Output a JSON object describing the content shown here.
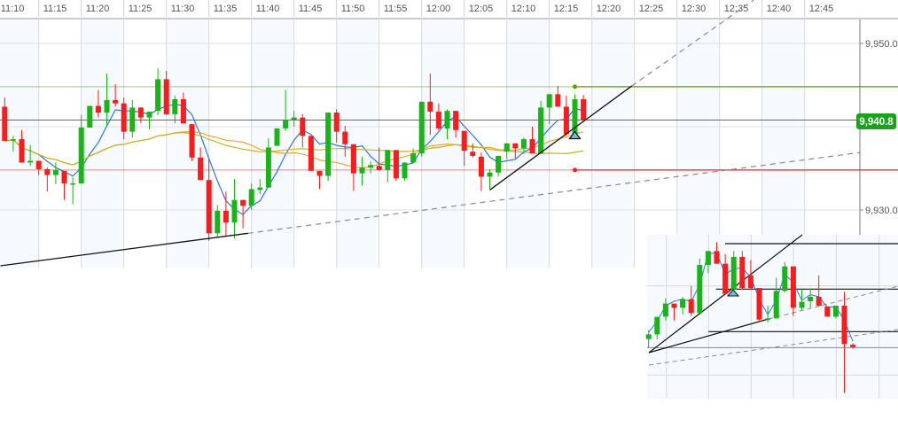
{
  "chart_data": {
    "type": "candlestick",
    "title": "",
    "time_axis": {
      "position": "top",
      "tick_labels": [
        "11:10",
        "11:15",
        "11:20",
        "11:25",
        "11:30",
        "11:35",
        "11:40",
        "11:45",
        "11:50",
        "11:55",
        "12:00",
        "12:05",
        "12:10",
        "12:15",
        "12:20",
        "12:25",
        "12:30",
        "12:35",
        "12:40",
        "12:45"
      ]
    },
    "price_axis": {
      "position": "right",
      "tick_labels": [
        "9,950.0",
        "9,930.0"
      ],
      "tick_values": [
        9950,
        9930
      ],
      "gridlines": [
        9950,
        9940,
        9930
      ]
    },
    "grid": true,
    "colors": {
      "up": "#18b418",
      "down": "#f81c1c",
      "fast_ma": "#2a73f0",
      "mid_ma": "#f5a22a",
      "slow_ma": "#c9b41c",
      "last_price": "#1aa31a"
    },
    "candles_columns": [
      "time",
      "open",
      "high",
      "low",
      "close"
    ],
    "candles": [
      [
        "11:11",
        9942.4,
        9943.5,
        9938.3,
        9938.3
      ],
      [
        "11:12",
        9938.4,
        9938.9,
        9937.0,
        9938.5
      ],
      [
        "11:13",
        9938.5,
        9939.6,
        9935.7,
        9935.7
      ],
      [
        "11:14",
        9935.7,
        9937.8,
        9935.3,
        9935.9
      ],
      [
        "11:15",
        9935.9,
        9935.9,
        9934.2,
        9934.9
      ],
      [
        "11:16",
        9934.9,
        9935.1,
        9932.2,
        9934.2
      ],
      [
        "11:17",
        9934.2,
        9935.7,
        9933.1,
        9934.8
      ],
      [
        "11:18",
        9934.7,
        9934.7,
        9931.2,
        9933.2
      ],
      [
        "11:19",
        9933.1,
        9933.9,
        9930.7,
        9933.2
      ],
      [
        "11:20",
        9933.2,
        9941.4,
        9933.2,
        9939.9
      ],
      [
        "11:21",
        9939.9,
        9942.5,
        9939.9,
        9942.5
      ],
      [
        "11:22",
        9942.5,
        9944.4,
        9941.1,
        9941.7
      ],
      [
        "11:23",
        9941.7,
        9946.4,
        9940.1,
        9943.2
      ],
      [
        "11:24",
        9943.2,
        9945.1,
        9942.4,
        9942.8
      ],
      [
        "11:25",
        9942.8,
        9943.5,
        9938.5,
        9939.4
      ],
      [
        "11:26",
        9939.4,
        9943.2,
        9938.7,
        9942.3
      ],
      [
        "11:27",
        9942.3,
        9942.3,
        9940.4,
        9941.1
      ],
      [
        "11:28",
        9941.1,
        9941.8,
        9939.7,
        9941.8
      ],
      [
        "11:29",
        9941.9,
        9947.0,
        9941.4,
        9945.7
      ],
      [
        "11:30",
        9945.7,
        9946.7,
        9941.4,
        9941.5
      ],
      [
        "11:31",
        9941.5,
        9943.7,
        9940.4,
        9943.3
      ],
      [
        "11:32",
        9943.3,
        9944.1,
        9940.4,
        9940.4
      ],
      [
        "11:33",
        9940.3,
        9940.3,
        9935.9,
        9936.3
      ],
      [
        "11:34",
        9936.3,
        9937.5,
        9933.6,
        9933.6
      ],
      [
        "11:35",
        9933.6,
        9936.1,
        9926.3,
        9927.2
      ],
      [
        "11:36",
        9927.2,
        9930.6,
        9926.7,
        9929.9
      ],
      [
        "11:37",
        9929.9,
        9932.2,
        9926.8,
        9928.5
      ],
      [
        "11:38",
        9928.5,
        9933.7,
        9926.6,
        9931.2
      ],
      [
        "11:39",
        9931.2,
        9931.2,
        9927.8,
        9930.5
      ],
      [
        "11:40",
        9930.5,
        9933.2,
        9930.0,
        9932.5
      ],
      [
        "11:41",
        9932.4,
        9933.7,
        9931.9,
        9932.7
      ],
      [
        "11:42",
        9932.7,
        9938.6,
        9932.7,
        9937.5
      ],
      [
        "11:43",
        9937.7,
        9939.8,
        9937.7,
        9939.8
      ],
      [
        "11:44",
        9939.8,
        9944.4,
        9939.5,
        9940.8
      ],
      [
        "11:45",
        9940.8,
        9941.9,
        9940.0,
        9941.1
      ],
      [
        "11:46",
        9941.1,
        9941.5,
        9937.5,
        9938.9
      ],
      [
        "11:47",
        9938.9,
        9938.9,
        9934.7,
        9934.7
      ],
      [
        "11:48",
        9934.7,
        9934.7,
        9932.5,
        9934.1
      ],
      [
        "11:49",
        9934.1,
        9941.7,
        9933.5,
        9941.7
      ],
      [
        "11:50",
        9941.7,
        9942.1,
        9938.1,
        9939.4
      ],
      [
        "11:51",
        9939.4,
        9940.1,
        9936.4,
        9937.9
      ],
      [
        "11:52",
        9937.9,
        9937.9,
        9932.3,
        9934.4
      ],
      [
        "11:53",
        9934.4,
        9936.4,
        9932.9,
        9935.1
      ],
      [
        "11:54",
        9935.1,
        9935.8,
        9934.4,
        9935.4
      ],
      [
        "11:55",
        9935.3,
        9937.5,
        9934.7,
        9934.8
      ],
      [
        "11:56",
        9934.8,
        9937.2,
        9933.3,
        9937.2
      ],
      [
        "11:57",
        9937.2,
        9937.2,
        9933.5,
        9933.8
      ],
      [
        "11:58",
        9933.8,
        9935.7,
        9933.5,
        9935.7
      ],
      [
        "11:59",
        9935.7,
        9937.4,
        9935.7,
        9936.8
      ],
      [
        "12:00",
        9936.8,
        9943.0,
        9936.4,
        9943.0
      ],
      [
        "12:01",
        9943.0,
        9946.4,
        9939.0,
        9941.8
      ],
      [
        "12:02",
        9941.8,
        9942.8,
        9939.6,
        9939.8
      ],
      [
        "12:03",
        9939.8,
        9942.1,
        9938.5,
        9941.9
      ],
      [
        "12:04",
        9941.9,
        9941.9,
        9938.7,
        9939.6
      ],
      [
        "12:05",
        9939.5,
        9939.5,
        9935.3,
        9937.1
      ],
      [
        "12:06",
        9937.0,
        9938.0,
        9936.3,
        9936.5
      ],
      [
        "12:07",
        9936.4,
        9936.9,
        9932.3,
        9934.0
      ],
      [
        "12:08",
        9934.0,
        9934.9,
        9932.5,
        9934.5
      ],
      [
        "12:09",
        9934.5,
        9936.5,
        9934.0,
        9936.5
      ],
      [
        "12:10",
        9937.0,
        9938.0,
        9936.1,
        9938.0
      ],
      [
        "12:11",
        9938.0,
        9938.0,
        9936.2,
        9937.4
      ],
      [
        "12:12",
        9937.4,
        9938.7,
        9936.7,
        9938.5
      ],
      [
        "12:13",
        9938.5,
        9940.0,
        9936.8,
        9936.8
      ],
      [
        "12:14",
        9936.8,
        9943.1,
        9936.8,
        9942.3
      ],
      [
        "12:15",
        9942.3,
        9943.9,
        9940.3,
        9943.9
      ],
      [
        "12:16",
        9943.9,
        9944.9,
        9942.4,
        9942.4
      ],
      [
        "12:17",
        9942.4,
        9943.7,
        9938.9,
        9939.1
      ],
      [
        "12:18",
        9939.1,
        9943.9,
        9939.1,
        9943.3
      ],
      [
        "12:19",
        9943.3,
        9943.8,
        9940.6,
        9940.8
      ]
    ],
    "moving_averages": [
      {
        "color": "#2a73f0",
        "period": 5
      },
      {
        "color": "#f5a22a",
        "period": 20
      },
      {
        "color": "#c9b41c",
        "period": 45
      }
    ],
    "last_price": {
      "value": 9940.8,
      "label": "9,940.8"
    },
    "horizontal_levels": [
      {
        "price": 9944.8,
        "color": "#5a9e00",
        "anchor_time": "12:18"
      },
      {
        "price": 9934.8,
        "color": "#ff1a1a",
        "anchor_time": "12:18"
      }
    ],
    "trendlines": [
      {
        "from": [
          "11:10.5",
          9923.3
        ],
        "to": [
          "11:39.6",
          9927.2
        ],
        "extend_to": [
          "12:51.5",
          9936.9
        ]
      },
      {
        "from": [
          "12:08",
          9932.4
        ],
        "to": [
          "12:24.7",
          9944.9
        ],
        "extend_to": [
          "12:39",
          9955.2
        ]
      }
    ],
    "alert_marker": {
      "time": "12:18",
      "price": 9939.2,
      "color": "#6cc3d5"
    },
    "inset": {
      "candles_columns": [
        "open",
        "high",
        "low",
        "close"
      ],
      "candles": [
        [
          19.2,
          22.2,
          16.2,
          20.8
        ],
        [
          20.8,
          26.7,
          19.2,
          26.7
        ],
        [
          26.8,
          33.0,
          25.5,
          31.2
        ],
        [
          31.2,
          31.2,
          25.5,
          29.8
        ],
        [
          29.8,
          33.4,
          27.6,
          32.7
        ],
        [
          32.7,
          37.2,
          27.0,
          28.0
        ],
        [
          28.0,
          46.5,
          28.0,
          44.3
        ],
        [
          44.3,
          49.0,
          41.5,
          49.0
        ],
        [
          49.0,
          52.0,
          44.7,
          44.7
        ],
        [
          44.7,
          48.0,
          34.5,
          34.5
        ],
        [
          36.0,
          49.0,
          35.5,
          47.0
        ],
        [
          47.0,
          49.0,
          36.0,
          36.5
        ],
        [
          40.8,
          46.0,
          36.0,
          36.5
        ],
        [
          36.5,
          36.5,
          25.5,
          25.8
        ],
        [
          25.8,
          30.5,
          24.8,
          26.2
        ],
        [
          26.2,
          40.0,
          26.2,
          35.5
        ],
        [
          35.5,
          45.2,
          35.0,
          43.8
        ],
        [
          43.8,
          43.8,
          27.0,
          29.8
        ],
        [
          29.8,
          36.0,
          29.0,
          31.8
        ],
        [
          32.0,
          36.4,
          29.8,
          33.5
        ],
        [
          33.5,
          40.7,
          30.2,
          30.5
        ],
        [
          30.2,
          30.2,
          26.8,
          26.8
        ],
        [
          26.8,
          30.5,
          26.2,
          30.5
        ],
        [
          30.5,
          35.2,
          1.0,
          17.5
        ],
        [
          17.3,
          17.8,
          16.0,
          16.5
        ]
      ],
      "levels": [
        51.5,
        36.1,
        21.7
      ],
      "last_level": 16.3
    }
  }
}
